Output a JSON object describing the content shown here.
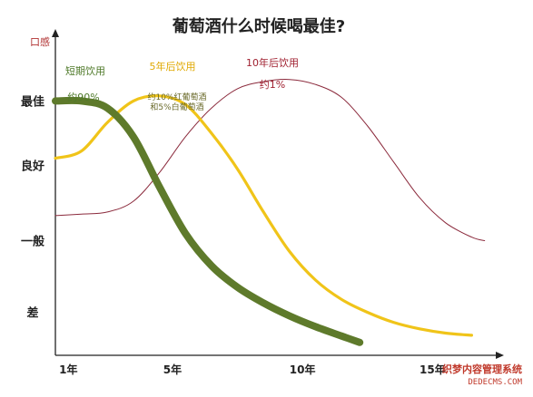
{
  "chart_data": {
    "type": "line",
    "title": "葡萄酒什么时候喝最佳?",
    "ylabel": "口感",
    "xlabel": "",
    "y_ticks": [
      "最佳",
      "良好",
      "一般",
      "差"
    ],
    "x_ticks": [
      {
        "value": 1,
        "label": "1年"
      },
      {
        "value": 5,
        "label": "5年"
      },
      {
        "value": 10,
        "label": "10年"
      },
      {
        "value": 15,
        "label": "15年"
      }
    ],
    "xlim": [
      0.5,
      17.5
    ],
    "ylim": [
      0,
      4.2
    ],
    "series": [
      {
        "name": "短期饮用",
        "note": "约90%",
        "color": "#5e7a2b",
        "x": [
          0.5,
          1.5,
          2.5,
          3.5,
          4.5,
          5.5,
          6.5,
          7.5,
          8.5,
          9.5,
          10.5,
          11.5,
          12.2
        ],
        "y": [
          3.55,
          3.55,
          3.45,
          3.05,
          2.35,
          1.7,
          1.25,
          0.95,
          0.73,
          0.55,
          0.4,
          0.27,
          0.18
        ]
      },
      {
        "name": "5年后饮用",
        "note": "约10%红葡萄酒\n和5%白葡萄酒",
        "color": "#f0c419",
        "x": [
          0.5,
          1.5,
          2.5,
          3.5,
          4.5,
          5.5,
          6.5,
          7.5,
          8.5,
          9.5,
          10.5,
          11.5,
          12.5,
          13.5,
          14.5,
          15.5,
          16.5
        ],
        "y": [
          2.75,
          2.85,
          3.25,
          3.55,
          3.62,
          3.5,
          3.1,
          2.6,
          2.0,
          1.45,
          1.05,
          0.78,
          0.6,
          0.46,
          0.37,
          0.31,
          0.28
        ]
      },
      {
        "name": "10年后饮用",
        "note": "约1%",
        "color": "#8b2a3c",
        "x": [
          0.5,
          1.5,
          2.5,
          3.5,
          4.5,
          5.5,
          6.5,
          7.5,
          8.5,
          9.5,
          10.5,
          11.5,
          12.5,
          13.5,
          14.5,
          15.5,
          16.5,
          17.0
        ],
        "y": [
          1.95,
          1.97,
          2.0,
          2.15,
          2.55,
          3.05,
          3.45,
          3.72,
          3.82,
          3.85,
          3.78,
          3.6,
          3.2,
          2.7,
          2.2,
          1.85,
          1.65,
          1.6
        ]
      }
    ],
    "grid": false,
    "legend": "inline-labels"
  },
  "watermark": {
    "line1": "织梦内容管理系统",
    "line2": "DEDECMS.COM"
  }
}
